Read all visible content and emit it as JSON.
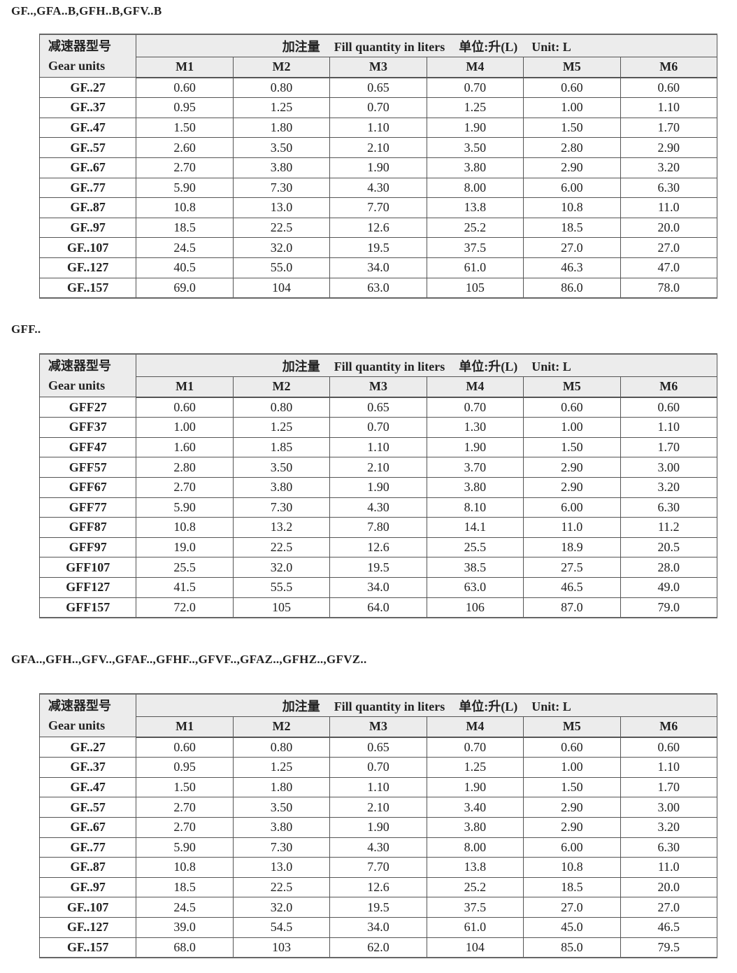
{
  "header_labels": {
    "gear_units_cn": "减速器型号",
    "gear_units_en": "Gear units",
    "fill_cn": "加注量",
    "fill_en": "Fill quantity in liters",
    "unit_cn": "单位:升(L)",
    "unit_en": "Unit: L",
    "modes": [
      "M1",
      "M2",
      "M3",
      "M4",
      "M5",
      "M6"
    ]
  },
  "sections": [
    {
      "title": "GF..,GFA..B,GFH..B,GFV..B",
      "rows": [
        [
          "GF..27",
          "0.60",
          "0.80",
          "0.65",
          "0.70",
          "0.60",
          "0.60"
        ],
        [
          "GF..37",
          "0.95",
          "1.25",
          "0.70",
          "1.25",
          "1.00",
          "1.10"
        ],
        [
          "GF..47",
          "1.50",
          "1.80",
          "1.10",
          "1.90",
          "1.50",
          "1.70"
        ],
        [
          "GF..57",
          "2.60",
          "3.50",
          "2.10",
          "3.50",
          "2.80",
          "2.90"
        ],
        [
          "GF..67",
          "2.70",
          "3.80",
          "1.90",
          "3.80",
          "2.90",
          "3.20"
        ],
        [
          "GF..77",
          "5.90",
          "7.30",
          "4.30",
          "8.00",
          "6.00",
          "6.30"
        ],
        [
          "GF..87",
          "10.8",
          "13.0",
          "7.70",
          "13.8",
          "10.8",
          "11.0"
        ],
        [
          "GF..97",
          "18.5",
          "22.5",
          "12.6",
          "25.2",
          "18.5",
          "20.0"
        ],
        [
          "GF..107",
          "24.5",
          "32.0",
          "19.5",
          "37.5",
          "27.0",
          "27.0"
        ],
        [
          "GF..127",
          "40.5",
          "55.0",
          "34.0",
          "61.0",
          "46.3",
          "47.0"
        ],
        [
          "GF..157",
          "69.0",
          "104",
          "63.0",
          "105",
          "86.0",
          "78.0"
        ]
      ]
    },
    {
      "title": "GFF..",
      "rows": [
        [
          "GFF27",
          "0.60",
          "0.80",
          "0.65",
          "0.70",
          "0.60",
          "0.60"
        ],
        [
          "GFF37",
          "1.00",
          "1.25",
          "0.70",
          "1.30",
          "1.00",
          "1.10"
        ],
        [
          "GFF47",
          "1.60",
          "1.85",
          "1.10",
          "1.90",
          "1.50",
          "1.70"
        ],
        [
          "GFF57",
          "2.80",
          "3.50",
          "2.10",
          "3.70",
          "2.90",
          "3.00"
        ],
        [
          "GFF67",
          "2.70",
          "3.80",
          "1.90",
          "3.80",
          "2.90",
          "3.20"
        ],
        [
          "GFF77",
          "5.90",
          "7.30",
          "4.30",
          "8.10",
          "6.00",
          "6.30"
        ],
        [
          "GFF87",
          "10.8",
          "13.2",
          "7.80",
          "14.1",
          "11.0",
          "11.2"
        ],
        [
          "GFF97",
          "19.0",
          "22.5",
          "12.6",
          "25.5",
          "18.9",
          "20.5"
        ],
        [
          "GFF107",
          "25.5",
          "32.0",
          "19.5",
          "38.5",
          "27.5",
          "28.0"
        ],
        [
          "GFF127",
          "41.5",
          "55.5",
          "34.0",
          "63.0",
          "46.5",
          "49.0"
        ],
        [
          "GFF157",
          "72.0",
          "105",
          "64.0",
          "106",
          "87.0",
          "79.0"
        ]
      ]
    },
    {
      "title": "GFA..,GFH..,GFV..,GFAF..,GFHF..,GFVF..,GFAZ..,GFHZ..,GFVZ..",
      "rows": [
        [
          "GF..27",
          "0.60",
          "0.80",
          "0.65",
          "0.70",
          "0.60",
          "0.60"
        ],
        [
          "GF..37",
          "0.95",
          "1.25",
          "0.70",
          "1.25",
          "1.00",
          "1.10"
        ],
        [
          "GF..47",
          "1.50",
          "1.80",
          "1.10",
          "1.90",
          "1.50",
          "1.70"
        ],
        [
          "GF..57",
          "2.70",
          "3.50",
          "2.10",
          "3.40",
          "2.90",
          "3.00"
        ],
        [
          "GF..67",
          "2.70",
          "3.80",
          "1.90",
          "3.80",
          "2.90",
          "3.20"
        ],
        [
          "GF..77",
          "5.90",
          "7.30",
          "4.30",
          "8.00",
          "6.00",
          "6.30"
        ],
        [
          "GF..87",
          "10.8",
          "13.0",
          "7.70",
          "13.8",
          "10.8",
          "11.0"
        ],
        [
          "GF..97",
          "18.5",
          "22.5",
          "12.6",
          "25.2",
          "18.5",
          "20.0"
        ],
        [
          "GF..107",
          "24.5",
          "32.0",
          "19.5",
          "37.5",
          "27.0",
          "27.0"
        ],
        [
          "GF..127",
          "39.0",
          "54.5",
          "34.0",
          "61.0",
          "45.0",
          "46.5"
        ],
        [
          "GF..157",
          "68.0",
          "103",
          "62.0",
          "104",
          "85.0",
          "79.5"
        ]
      ]
    }
  ]
}
